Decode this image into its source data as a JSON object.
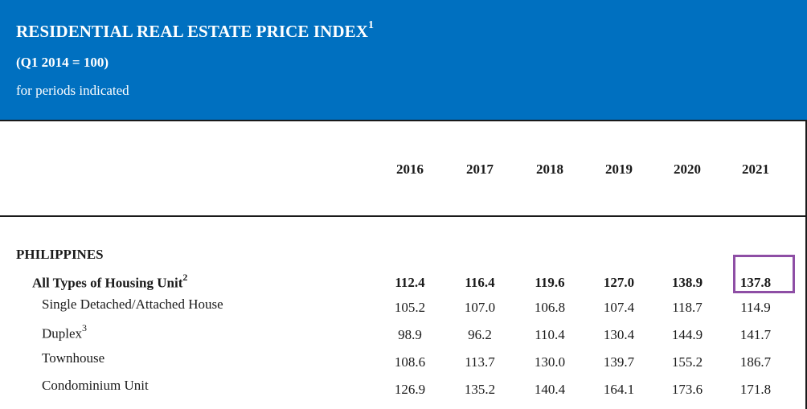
{
  "header": {
    "title": "RESIDENTIAL REAL ESTATE PRICE INDEX",
    "title_footnote": "1",
    "subtitle": "(Q1 2014 = 100)",
    "period_note": "for periods indicated"
  },
  "colors": {
    "header_bg": "#0070c0",
    "highlight_border": "#8e4ea5"
  },
  "table": {
    "years": [
      "2016",
      "2017",
      "2018",
      "2019",
      "2020",
      "2021"
    ],
    "region": "PHILIPPINES",
    "rows": [
      {
        "label": "All Types of Housing Unit",
        "footnote": "2",
        "bold": true,
        "values": [
          "112.4",
          "116.4",
          "119.6",
          "127.0",
          "138.9",
          "137.8"
        ]
      },
      {
        "label": "Single Detached/Attached House",
        "footnote": "",
        "bold": false,
        "values": [
          "105.2",
          "107.0",
          "106.8",
          "107.4",
          "118.7",
          "114.9"
        ]
      },
      {
        "label": "Duplex",
        "footnote": "3",
        "bold": false,
        "values": [
          "98.9",
          "96.2",
          "110.4",
          "130.4",
          "144.9",
          "141.7"
        ]
      },
      {
        "label": "Townhouse",
        "footnote": "",
        "bold": false,
        "values": [
          "108.6",
          "113.7",
          "130.0",
          "139.7",
          "155.2",
          "186.7"
        ]
      },
      {
        "label": "Condominium Unit",
        "footnote": "",
        "bold": false,
        "values": [
          "126.9",
          "135.2",
          "140.4",
          "164.1",
          "173.6",
          "171.8"
        ]
      }
    ]
  }
}
